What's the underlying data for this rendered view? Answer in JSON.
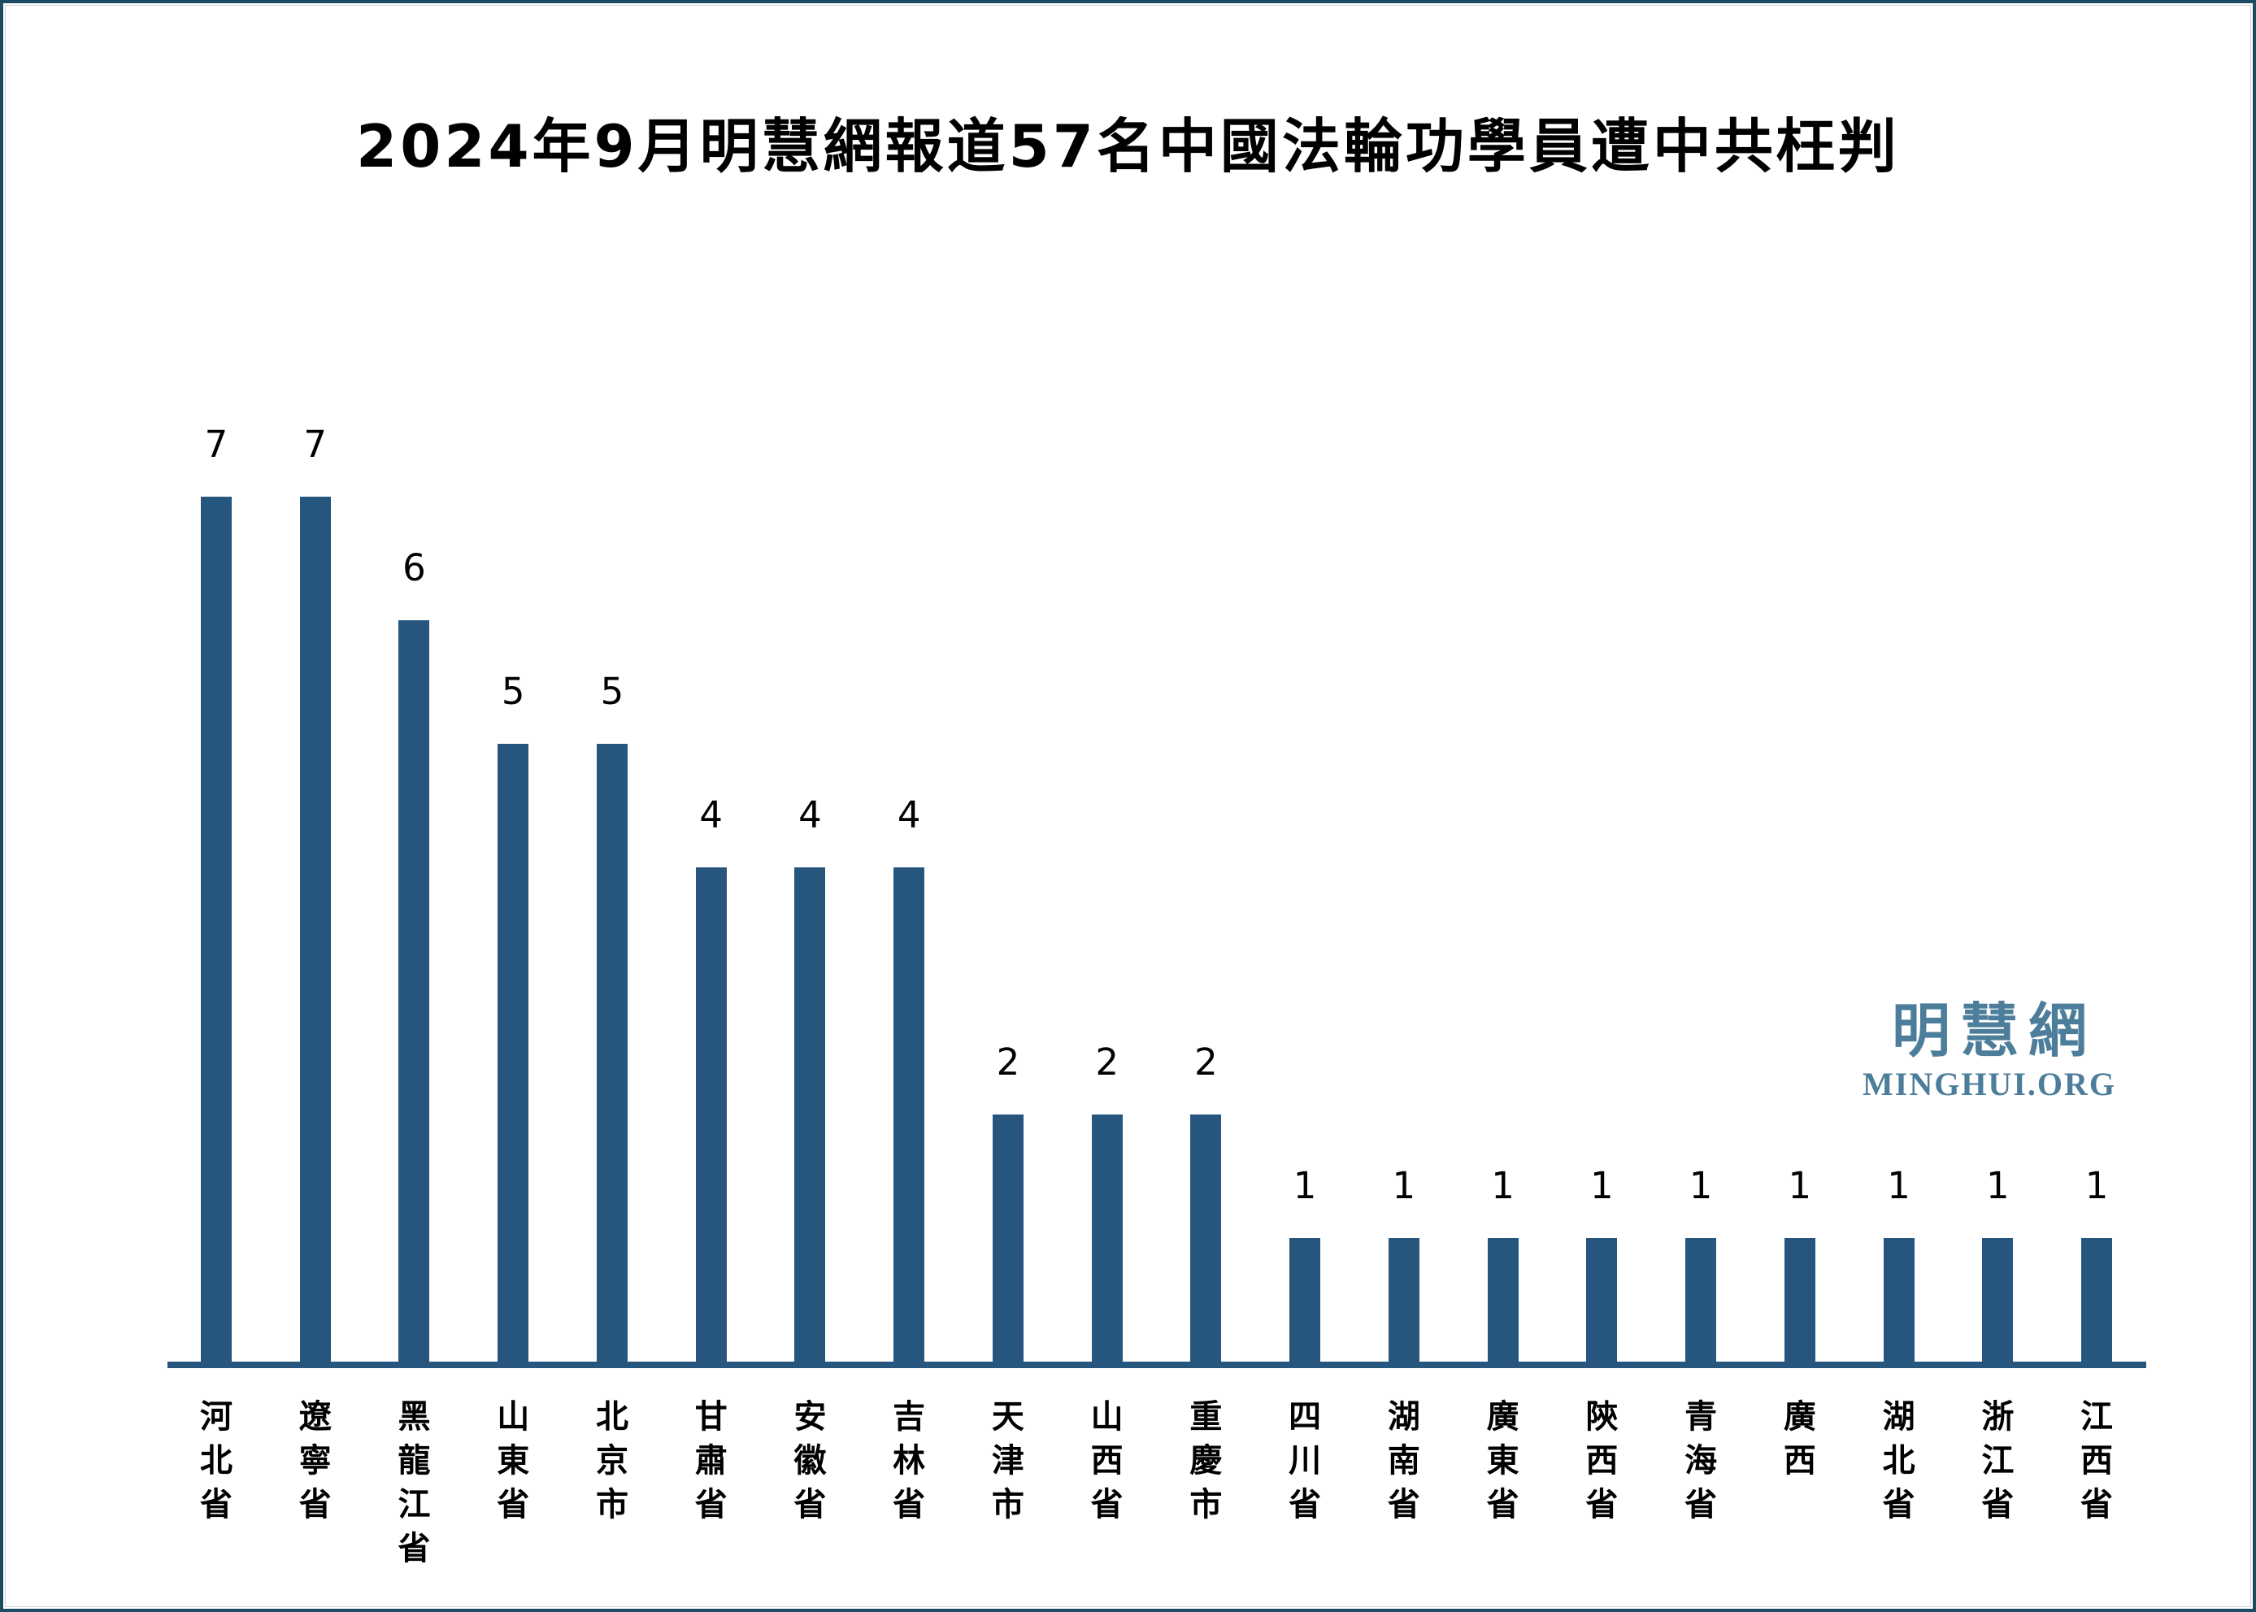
{
  "page": {
    "background": "#ffffff",
    "frame_color": "#1c4b63"
  },
  "title": "2024年9月明慧網報道57名中國法輪功學員遭中共枉判",
  "watermark": {
    "cjk": "明慧網",
    "latin": "MINGHUI.ORG",
    "color": "#4c7e9b"
  },
  "chart_data": {
    "type": "bar",
    "title": "2024年9月明慧網報道57名中國法輪功學員遭中共枉判",
    "categories": [
      "河北省",
      "遼寧省",
      "黑龍江省",
      "山東省",
      "北京市",
      "甘肅省",
      "安徽省",
      "吉林省",
      "天津市",
      "山西省",
      "重慶市",
      "四川省",
      "湖南省",
      "廣東省",
      "陝西省",
      "青海省",
      "廣西",
      "湖北省",
      "浙江省",
      "江西省"
    ],
    "values": [
      7,
      7,
      6,
      5,
      5,
      4,
      4,
      4,
      2,
      2,
      2,
      1,
      1,
      1,
      1,
      1,
      1,
      1,
      1,
      1
    ],
    "total": 57,
    "xlabel": "",
    "ylabel": "",
    "ylim": [
      0,
      7
    ],
    "grid": false,
    "legend": false,
    "data_labels": true,
    "x_label_orientation": "vertical-stacked",
    "bar_color": "#26557e",
    "axis_color": "#26557e",
    "label_color": "#000000"
  }
}
